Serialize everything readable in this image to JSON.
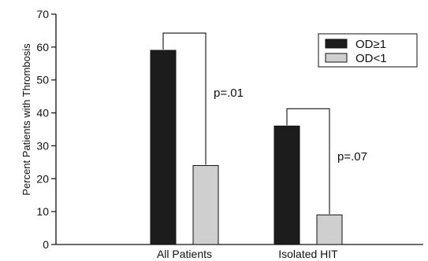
{
  "chart_data": {
    "type": "bar",
    "title": "",
    "ylabel": "Percent Patients with Thrombosis",
    "xlabel": "",
    "ylim": [
      0,
      70
    ],
    "yticks": [
      0,
      10,
      20,
      30,
      40,
      50,
      60,
      70
    ],
    "grid": false,
    "legend_position": "top-right",
    "categories": [
      "All Patients",
      "Isolated HIT"
    ],
    "series": [
      {
        "name": "OD≥1",
        "values": [
          59,
          36
        ],
        "color": "#1c1c1c"
      },
      {
        "name": "OD<1",
        "values": [
          24,
          9
        ],
        "color": "#cfcfcf"
      }
    ],
    "annotations": [
      {
        "category": "All Patients",
        "text": "p=.01"
      },
      {
        "category": "Isolated HIT",
        "text": "p=.07"
      }
    ]
  }
}
